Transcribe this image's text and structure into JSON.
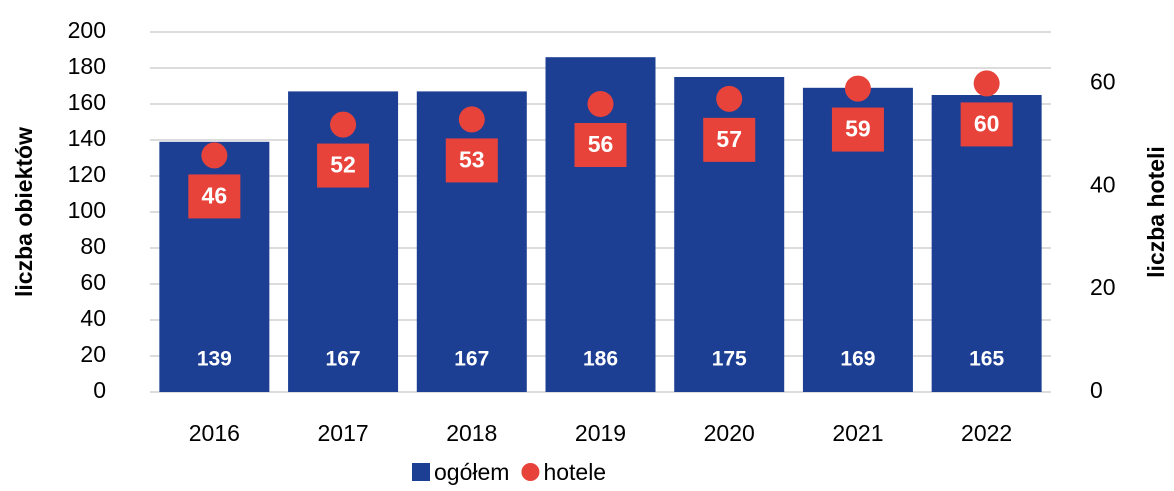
{
  "chart_data": {
    "type": "bar",
    "categories": [
      "2016",
      "2017",
      "2018",
      "2019",
      "2020",
      "2021",
      "2022"
    ],
    "series": [
      {
        "name": "ogółem",
        "color": "#1c3f94",
        "values": [
          139,
          167,
          167,
          186,
          175,
          169,
          165
        ]
      },
      {
        "name": "hotele",
        "color": "#e8433a",
        "axis": "y2",
        "marker": "circle",
        "values": [
          46,
          52,
          53,
          56,
          57,
          59,
          60
        ]
      }
    ],
    "ylabel": "liczba obiektów",
    "y2label": "liczba hoteli",
    "ylim": [
      0,
      200
    ],
    "yticks": [
      0,
      20,
      40,
      60,
      80,
      100,
      120,
      140,
      160,
      180,
      200
    ],
    "y2lim": [
      0,
      70
    ],
    "y2ticks": [
      0,
      20,
      40,
      60
    ],
    "grid": true,
    "legend": "bottom"
  }
}
